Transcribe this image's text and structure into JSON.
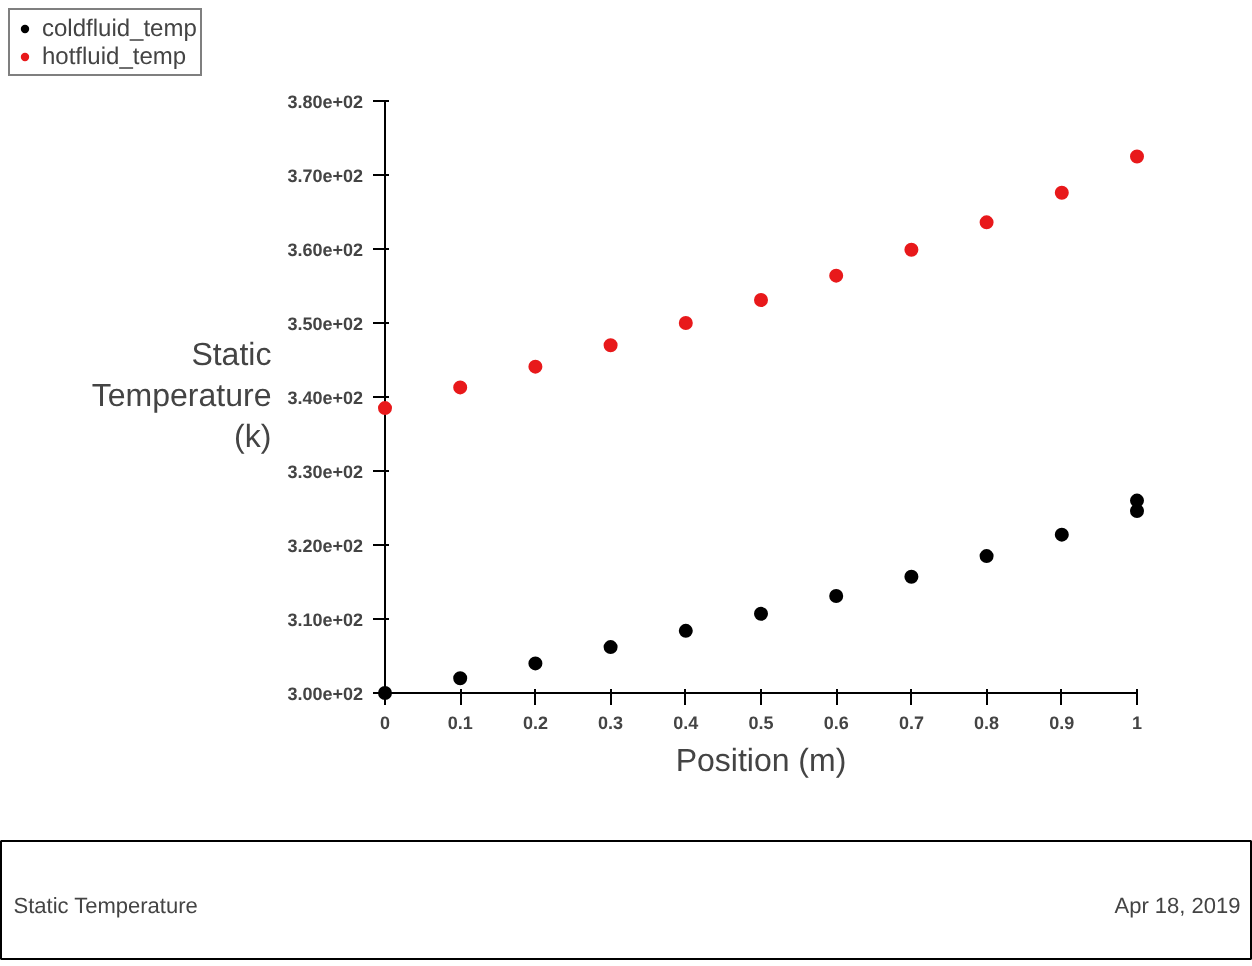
{
  "chart_data": {
    "type": "scatter",
    "xlabel": "Position (m)",
    "ylabel": "Static Temperature (k)",
    "x": [
      0,
      0.1,
      0.2,
      0.3,
      0.4,
      0.5,
      0.6,
      0.7,
      0.8,
      0.9,
      1
    ],
    "series": [
      {
        "name": "coldfluid_temp",
        "color": "#000000",
        "x": [
          0,
          0.1,
          0.2,
          0.3,
          0.4,
          0.5,
          0.6,
          0.7,
          0.8,
          0.9,
          1,
          1
        ],
        "values": [
          300.0,
          302.0,
          304.0,
          306.2,
          308.4,
          310.7,
          313.1,
          315.7,
          318.5,
          321.4,
          324.6,
          326.0
        ]
      },
      {
        "name": "hotfluid_temp",
        "color": "#e8191b",
        "values": [
          338.5,
          341.3,
          344.1,
          347.0,
          350.0,
          353.1,
          356.4,
          359.9,
          363.6,
          367.6,
          372.5
        ]
      }
    ],
    "xlim": [
      0,
      1
    ],
    "ylim": [
      300,
      380
    ],
    "xticks": [
      0,
      0.1,
      0.2,
      0.3,
      0.4,
      0.5,
      0.6,
      0.7,
      0.8,
      0.9,
      1
    ],
    "yticks": [
      {
        "value": 300,
        "label": "3.00e+02"
      },
      {
        "value": 310,
        "label": "3.10e+02"
      },
      {
        "value": 320,
        "label": "3.20e+02"
      },
      {
        "value": 330,
        "label": "3.30e+02"
      },
      {
        "value": 340,
        "label": "3.40e+02"
      },
      {
        "value": 350,
        "label": "3.50e+02"
      },
      {
        "value": 360,
        "label": "3.60e+02"
      },
      {
        "value": 370,
        "label": "3.70e+02"
      },
      {
        "value": 380,
        "label": "3.80e+02"
      }
    ],
    "grid": false,
    "legend": "top left",
    "marker": "circle",
    "annotations": [
      "Static Temperature",
      "Apr 18, 2019"
    ]
  }
}
